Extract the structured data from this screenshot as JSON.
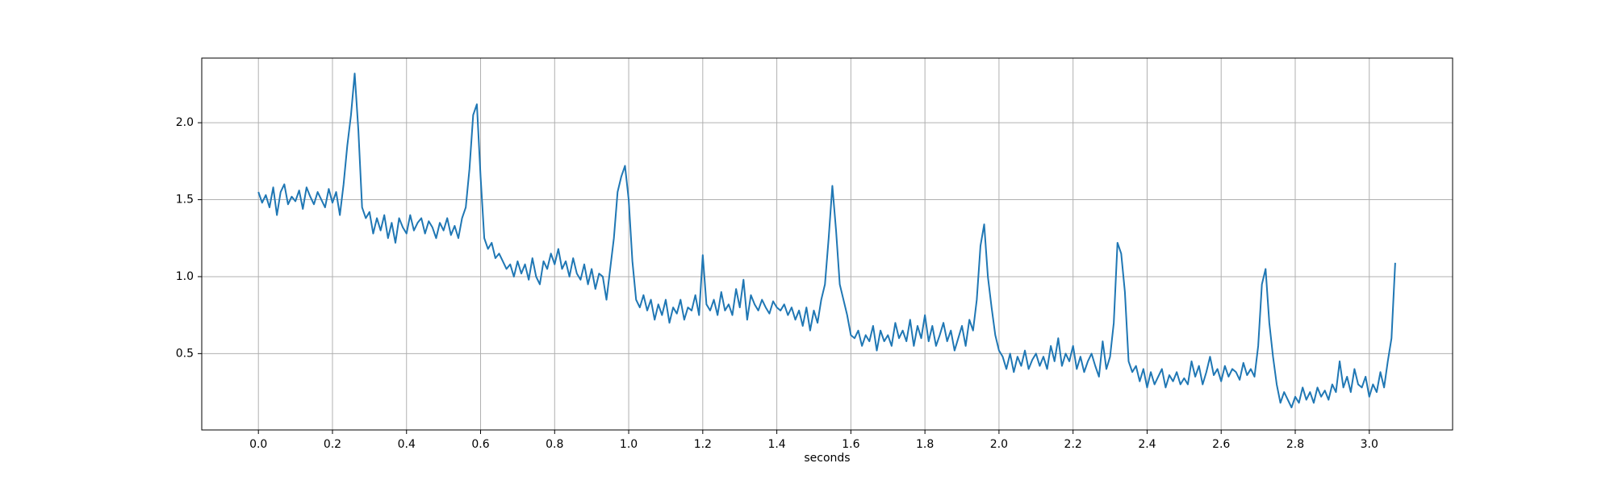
{
  "chart_data": {
    "type": "line",
    "xlabel": "seconds",
    "color": "#1f77b4",
    "grid": true,
    "xlim": [
      -0.153,
      3.225
    ],
    "ylim": [
      0.004,
      2.42
    ],
    "xticks": [
      {
        "value": 0,
        "label": "0.0"
      },
      0.2,
      0.4,
      0.6,
      0.8,
      {
        "value": 1,
        "label": "1.0"
      },
      1.2,
      1.4,
      1.6,
      1.8,
      {
        "value": 2,
        "label": "2.0"
      },
      2.2,
      2.4,
      2.6,
      2.8,
      {
        "value": 3,
        "label": "3.0"
      }
    ],
    "yticks": [
      0.5,
      {
        "value": 1,
        "label": "1.0"
      },
      1.5,
      {
        "value": 2,
        "label": "2.0"
      }
    ],
    "x": [
      0.0,
      0.01,
      0.02,
      0.03,
      0.04,
      0.05,
      0.06,
      0.07,
      0.08,
      0.09,
      0.1,
      0.11,
      0.12,
      0.13,
      0.14,
      0.15,
      0.16,
      0.17,
      0.18,
      0.19,
      0.2,
      0.21,
      0.22,
      0.23,
      0.24,
      0.25,
      0.26,
      0.27,
      0.28,
      0.29,
      0.3,
      0.31,
      0.32,
      0.33,
      0.34,
      0.35,
      0.36,
      0.37,
      0.38,
      0.39,
      0.4,
      0.41,
      0.42,
      0.43,
      0.44,
      0.45,
      0.46,
      0.47,
      0.48,
      0.49,
      0.5,
      0.51,
      0.52,
      0.53,
      0.54,
      0.55,
      0.56,
      0.57,
      0.58,
      0.59,
      0.6,
      0.61,
      0.62,
      0.63,
      0.64,
      0.65,
      0.66,
      0.67,
      0.68,
      0.69,
      0.7,
      0.71,
      0.72,
      0.73,
      0.74,
      0.75,
      0.76,
      0.77,
      0.78,
      0.79,
      0.8,
      0.81,
      0.82,
      0.83,
      0.84,
      0.85,
      0.86,
      0.87,
      0.88,
      0.89,
      0.9,
      0.91,
      0.92,
      0.93,
      0.94,
      0.95,
      0.96,
      0.97,
      0.98,
      0.99,
      1.0,
      1.01,
      1.02,
      1.03,
      1.04,
      1.05,
      1.06,
      1.07,
      1.08,
      1.09,
      1.1,
      1.11,
      1.12,
      1.13,
      1.14,
      1.15,
      1.16,
      1.17,
      1.18,
      1.19,
      1.2,
      1.21,
      1.22,
      1.23,
      1.24,
      1.25,
      1.26,
      1.27,
      1.28,
      1.29,
      1.3,
      1.31,
      1.32,
      1.33,
      1.34,
      1.35,
      1.36,
      1.37,
      1.38,
      1.39,
      1.4,
      1.41,
      1.42,
      1.43,
      1.44,
      1.45,
      1.46,
      1.47,
      1.48,
      1.49,
      1.5,
      1.51,
      1.52,
      1.53,
      1.54,
      1.55,
      1.56,
      1.57,
      1.58,
      1.59,
      1.6,
      1.61,
      1.62,
      1.63,
      1.64,
      1.65,
      1.66,
      1.67,
      1.68,
      1.69,
      1.7,
      1.71,
      1.72,
      1.73,
      1.74,
      1.75,
      1.76,
      1.77,
      1.78,
      1.79,
      1.8,
      1.81,
      1.82,
      1.83,
      1.84,
      1.85,
      1.86,
      1.87,
      1.88,
      1.89,
      1.9,
      1.91,
      1.92,
      1.93,
      1.94,
      1.95,
      1.96,
      1.97,
      1.98,
      1.99,
      2.0,
      2.01,
      2.02,
      2.03,
      2.04,
      2.05,
      2.06,
      2.07,
      2.08,
      2.09,
      2.1,
      2.11,
      2.12,
      2.13,
      2.14,
      2.15,
      2.16,
      2.17,
      2.18,
      2.19,
      2.2,
      2.21,
      2.22,
      2.23,
      2.24,
      2.25,
      2.26,
      2.27,
      2.28,
      2.29,
      2.3,
      2.31,
      2.32,
      2.33,
      2.34,
      2.35,
      2.36,
      2.37,
      2.38,
      2.39,
      2.4,
      2.41,
      2.42,
      2.43,
      2.44,
      2.45,
      2.46,
      2.47,
      2.48,
      2.49,
      2.5,
      2.51,
      2.52,
      2.53,
      2.54,
      2.55,
      2.56,
      2.57,
      2.58,
      2.59,
      2.6,
      2.61,
      2.62,
      2.63,
      2.64,
      2.65,
      2.66,
      2.67,
      2.68,
      2.69,
      2.7,
      2.71,
      2.72,
      2.73,
      2.74,
      2.75,
      2.76,
      2.77,
      2.78,
      2.79,
      2.8,
      2.81,
      2.82,
      2.83,
      2.84,
      2.85,
      2.86,
      2.87,
      2.88,
      2.89,
      2.9,
      2.91,
      2.92,
      2.93,
      2.94,
      2.95,
      2.96,
      2.97,
      2.98,
      2.99,
      3.0,
      3.01,
      3.02,
      3.03,
      3.04,
      3.05,
      3.06,
      3.07
    ],
    "values": [
      1.55,
      1.48,
      1.53,
      1.45,
      1.58,
      1.4,
      1.55,
      1.6,
      1.47,
      1.52,
      1.49,
      1.56,
      1.44,
      1.58,
      1.52,
      1.47,
      1.55,
      1.5,
      1.45,
      1.57,
      1.48,
      1.55,
      1.4,
      1.6,
      1.85,
      2.05,
      2.32,
      1.95,
      1.45,
      1.38,
      1.42,
      1.28,
      1.38,
      1.3,
      1.4,
      1.25,
      1.35,
      1.22,
      1.38,
      1.32,
      1.28,
      1.4,
      1.3,
      1.35,
      1.38,
      1.28,
      1.36,
      1.32,
      1.25,
      1.35,
      1.3,
      1.38,
      1.27,
      1.33,
      1.25,
      1.38,
      1.45,
      1.7,
      2.05,
      2.12,
      1.65,
      1.25,
      1.18,
      1.22,
      1.12,
      1.15,
      1.1,
      1.05,
      1.08,
      1.0,
      1.1,
      1.02,
      1.08,
      0.98,
      1.12,
      1.0,
      0.95,
      1.1,
      1.05,
      1.15,
      1.08,
      1.18,
      1.05,
      1.1,
      1.0,
      1.12,
      1.02,
      0.98,
      1.08,
      0.95,
      1.05,
      0.92,
      1.02,
      1.0,
      0.85,
      1.05,
      1.25,
      1.55,
      1.65,
      1.72,
      1.5,
      1.1,
      0.85,
      0.8,
      0.88,
      0.78,
      0.85,
      0.72,
      0.82,
      0.75,
      0.85,
      0.7,
      0.8,
      0.76,
      0.85,
      0.72,
      0.8,
      0.78,
      0.88,
      0.75,
      1.14,
      0.82,
      0.78,
      0.85,
      0.75,
      0.9,
      0.78,
      0.82,
      0.75,
      0.92,
      0.8,
      0.98,
      0.72,
      0.88,
      0.82,
      0.78,
      0.85,
      0.8,
      0.76,
      0.84,
      0.8,
      0.78,
      0.82,
      0.75,
      0.8,
      0.72,
      0.78,
      0.68,
      0.8,
      0.65,
      0.78,
      0.7,
      0.85,
      0.95,
      1.25,
      1.59,
      1.3,
      0.95,
      0.85,
      0.75,
      0.62,
      0.6,
      0.65,
      0.55,
      0.62,
      0.58,
      0.68,
      0.52,
      0.65,
      0.58,
      0.62,
      0.55,
      0.7,
      0.6,
      0.65,
      0.58,
      0.72,
      0.55,
      0.68,
      0.6,
      0.75,
      0.58,
      0.68,
      0.55,
      0.62,
      0.7,
      0.58,
      0.65,
      0.52,
      0.6,
      0.68,
      0.55,
      0.72,
      0.65,
      0.85,
      1.2,
      1.34,
      1.0,
      0.8,
      0.62,
      0.52,
      0.48,
      0.4,
      0.5,
      0.38,
      0.48,
      0.42,
      0.52,
      0.4,
      0.46,
      0.5,
      0.42,
      0.48,
      0.4,
      0.55,
      0.45,
      0.6,
      0.42,
      0.5,
      0.45,
      0.55,
      0.4,
      0.48,
      0.38,
      0.45,
      0.5,
      0.42,
      0.35,
      0.58,
      0.4,
      0.48,
      0.7,
      1.22,
      1.15,
      0.9,
      0.45,
      0.38,
      0.42,
      0.32,
      0.4,
      0.28,
      0.38,
      0.3,
      0.35,
      0.4,
      0.28,
      0.36,
      0.32,
      0.38,
      0.3,
      0.34,
      0.3,
      0.45,
      0.35,
      0.42,
      0.3,
      0.38,
      0.48,
      0.36,
      0.4,
      0.32,
      0.42,
      0.35,
      0.4,
      0.38,
      0.33,
      0.44,
      0.36,
      0.4,
      0.35,
      0.55,
      0.95,
      1.05,
      0.7,
      0.48,
      0.3,
      0.18,
      0.25,
      0.2,
      0.15,
      0.22,
      0.18,
      0.28,
      0.2,
      0.25,
      0.18,
      0.28,
      0.22,
      0.26,
      0.2,
      0.3,
      0.25,
      0.45,
      0.28,
      0.35,
      0.25,
      0.4,
      0.3,
      0.28,
      0.35,
      0.22,
      0.3,
      0.25,
      0.38,
      0.28,
      0.45,
      0.6,
      1.09
    ]
  }
}
